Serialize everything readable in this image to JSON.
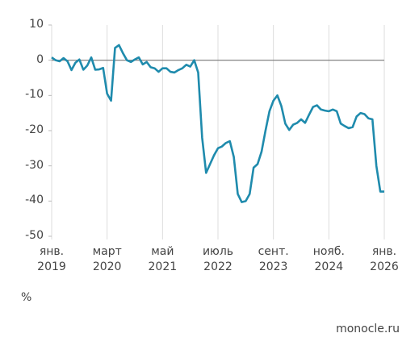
{
  "chart_data": {
    "type": "line",
    "x": [
      "2019-01",
      "2019-02",
      "2019-03",
      "2019-04",
      "2019-05",
      "2019-06",
      "2019-07",
      "2019-08",
      "2019-09",
      "2019-10",
      "2019-11",
      "2019-12",
      "2020-01",
      "2020-02",
      "2020-03",
      "2020-04",
      "2020-05",
      "2020-06",
      "2020-07",
      "2020-08",
      "2020-09",
      "2020-10",
      "2020-11",
      "2020-12",
      "2021-01",
      "2021-02",
      "2021-03",
      "2021-04",
      "2021-05",
      "2021-06",
      "2021-07",
      "2021-08",
      "2021-09",
      "2021-10",
      "2021-11",
      "2021-12",
      "2022-01",
      "2022-02",
      "2022-03",
      "2022-04",
      "2022-05",
      "2022-06",
      "2022-07",
      "2022-08",
      "2022-09",
      "2022-10",
      "2022-11",
      "2022-12",
      "2023-01",
      "2023-02",
      "2023-03",
      "2023-04",
      "2023-05",
      "2023-06",
      "2023-07",
      "2023-08",
      "2023-09",
      "2023-10",
      "2023-11",
      "2023-12",
      "2024-01",
      "2024-02",
      "2024-03",
      "2024-04",
      "2024-05",
      "2024-06",
      "2024-07",
      "2024-08",
      "2024-09",
      "2024-10",
      "2024-11",
      "2024-12",
      "2025-01",
      "2025-02",
      "2025-03",
      "2025-04",
      "2025-05",
      "2025-06",
      "2025-07",
      "2025-08",
      "2025-09",
      "2025-10",
      "2025-11",
      "2025-12",
      "2026-01"
    ],
    "values": [
      0.8,
      0,
      -0.3,
      0.6,
      -0.3,
      -2.8,
      -0.7,
      0.2,
      -2.7,
      -1.5,
      0.8,
      -2.7,
      -2.6,
      -2.2,
      -9.5,
      -11.5,
      3.5,
      4.3,
      2,
      0,
      -0.5,
      0.2,
      0.8,
      -1.2,
      -0.5,
      -2,
      -2.3,
      -3.3,
      -2.3,
      -2.3,
      -3.3,
      -3.5,
      -2.8,
      -2.3,
      -1.3,
      -1.8,
      0,
      -3.5,
      -22,
      -32,
      -29.5,
      -27,
      -25,
      -24.5,
      -23.5,
      -23,
      -27.5,
      -38,
      -40.3,
      -40,
      -38,
      -30.5,
      -29.5,
      -26,
      -20,
      -14.5,
      -11.5,
      -10,
      -13,
      -18,
      -19.8,
      -18.3,
      -17.8,
      -16.8,
      -17.8,
      -15.5,
      -13.3,
      -12.8,
      -14,
      -14.3,
      -14.5,
      -14,
      -14.5,
      -18,
      -18.7,
      -19.3,
      -19,
      -16,
      -15,
      -15.3,
      -16.5,
      -16.8,
      -30,
      -37.3,
      -37.3
    ],
    "color": "#1f8bad",
    "xlim": [
      "2019-01",
      "2026-01"
    ],
    "xticks": [
      {
        "value": "2019-01",
        "label": "янв.\n2019"
      },
      {
        "value": "2020-03",
        "label": "март\n2020"
      },
      {
        "value": "2021-05",
        "label": "май\n2021"
      },
      {
        "value": "2022-07",
        "label": "июль\n2022"
      },
      {
        "value": "2023-09",
        "label": "сент.\n2023"
      },
      {
        "value": "2024-11",
        "label": "нояб.\n2024"
      },
      {
        "value": "2026-01",
        "label": "янв.\n2026"
      }
    ],
    "ylim": [
      -50,
      10
    ],
    "yticks": [
      -50,
      -40,
      -30,
      -20,
      -10,
      0,
      10
    ],
    "y_unit": "%",
    "source": "monocle.ru"
  }
}
